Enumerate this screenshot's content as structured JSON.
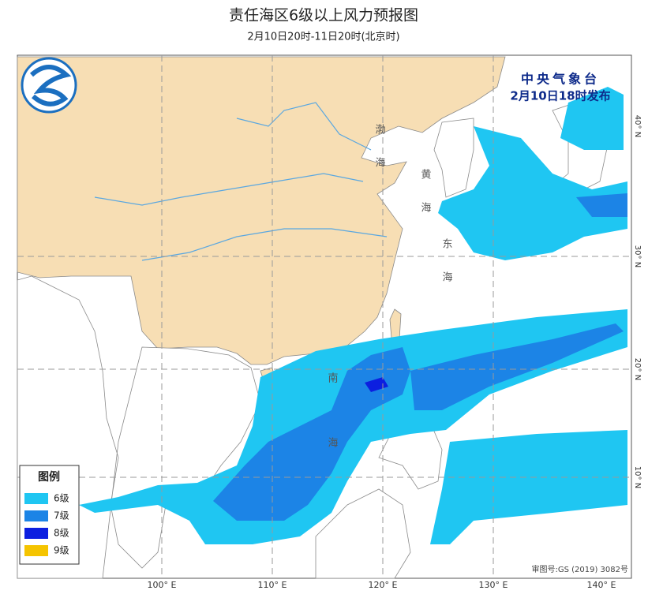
{
  "header": {
    "title": "责任海区6级以上风力预报图",
    "subtitle": "2月10日20时-11日20时(北京时)"
  },
  "issuer": {
    "name": "中央气象台",
    "time": "2月10日18时发布"
  },
  "legend": {
    "title": "图例",
    "items": [
      {
        "label": "6级",
        "color": "#1fc6f2"
      },
      {
        "label": "7级",
        "color": "#1c84e6"
      },
      {
        "label": "8级",
        "color": "#0c1fe0"
      },
      {
        "label": "9级",
        "color": "#f5c400"
      }
    ]
  },
  "sea_labels": [
    {
      "chars": [
        "渤",
        "海"
      ]
    },
    {
      "chars": [
        "黄",
        "海"
      ]
    },
    {
      "chars": [
        "东",
        "海"
      ]
    },
    {
      "chars": [
        "南",
        "海"
      ]
    }
  ],
  "axis_labels": {
    "lon": [
      "100° E",
      "110° E",
      "120° E",
      "130° E",
      "140° E"
    ],
    "lat": [
      "40° N",
      "30° N",
      "20° N",
      "10° N"
    ]
  },
  "map_approval": "审图号:GS (2019) 3082号"
}
